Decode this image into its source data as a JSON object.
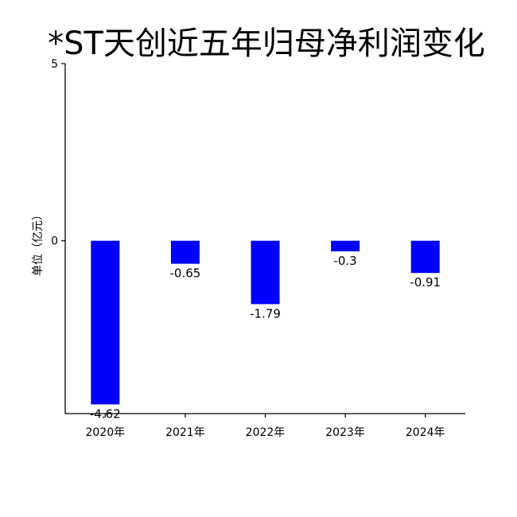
{
  "chart_data": {
    "type": "bar",
    "title": "*ST天创近五年归母净利润变化",
    "ylabel": "单位（亿元）",
    "xlabel": "",
    "categories": [
      "2020年",
      "2021年",
      "2022年",
      "2023年",
      "2024年"
    ],
    "values": [
      -4.62,
      -0.65,
      -1.79,
      -0.3,
      -0.91
    ],
    "data_labels": [
      "-4.62",
      "-0.65",
      "-1.79",
      "-0.3",
      "-0.91"
    ],
    "ylim": [
      -4.88,
      5
    ],
    "yticks": [
      5,
      0
    ],
    "ytick_labels": [
      "5",
      "0"
    ],
    "bar_color": "#0000ff",
    "grid": false,
    "legend": "none"
  }
}
